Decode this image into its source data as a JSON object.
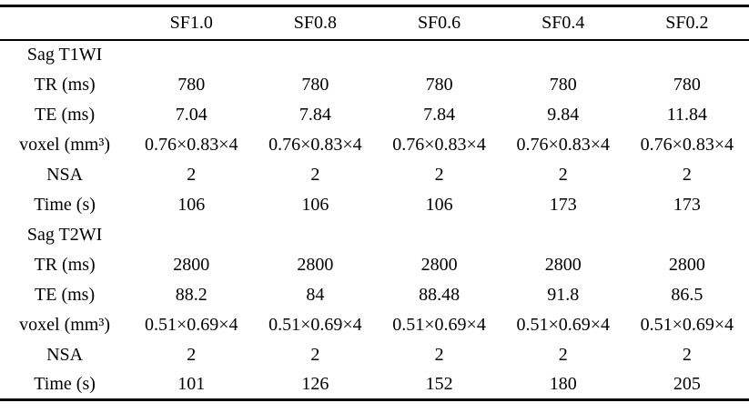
{
  "table": {
    "columns": [
      "",
      "SF1.0",
      "SF0.8",
      "SF0.6",
      "SF0.4",
      "SF0.2"
    ],
    "sections": [
      {
        "title": "Sag T1WI",
        "rows": [
          {
            "label": "TR (ms)",
            "values": [
              "780",
              "780",
              "780",
              "780",
              "780"
            ]
          },
          {
            "label": "TE (ms)",
            "values": [
              "7.04",
              "7.84",
              "7.84",
              "9.84",
              "11.84"
            ]
          },
          {
            "label": "voxel (mm³)",
            "values": [
              "0.76×0.83×4",
              "0.76×0.83×4",
              "0.76×0.83×4",
              "0.76×0.83×4",
              "0.76×0.83×4"
            ]
          },
          {
            "label": "NSA",
            "values": [
              "2",
              "2",
              "2",
              "2",
              "2"
            ]
          },
          {
            "label": "Time (s)",
            "values": [
              "106",
              "106",
              "106",
              "173",
              "173"
            ]
          }
        ]
      },
      {
        "title": "Sag T2WI",
        "rows": [
          {
            "label": "TR (ms)",
            "values": [
              "2800",
              "2800",
              "2800",
              "2800",
              "2800"
            ]
          },
          {
            "label": "TE (ms)",
            "values": [
              "88.2",
              "84",
              "88.48",
              "91.8",
              "86.5"
            ]
          },
          {
            "label": "voxel (mm³)",
            "values": [
              "0.51×0.69×4",
              "0.51×0.69×4",
              "0.51×0.69×4",
              "0.51×0.69×4",
              "0.51×0.69×4"
            ]
          },
          {
            "label": "NSA",
            "values": [
              "2",
              "2",
              "2",
              "2",
              "2"
            ]
          },
          {
            "label": "Time (s)",
            "values": [
              "101",
              "126",
              "152",
              "180",
              "205"
            ]
          }
        ]
      }
    ]
  }
}
